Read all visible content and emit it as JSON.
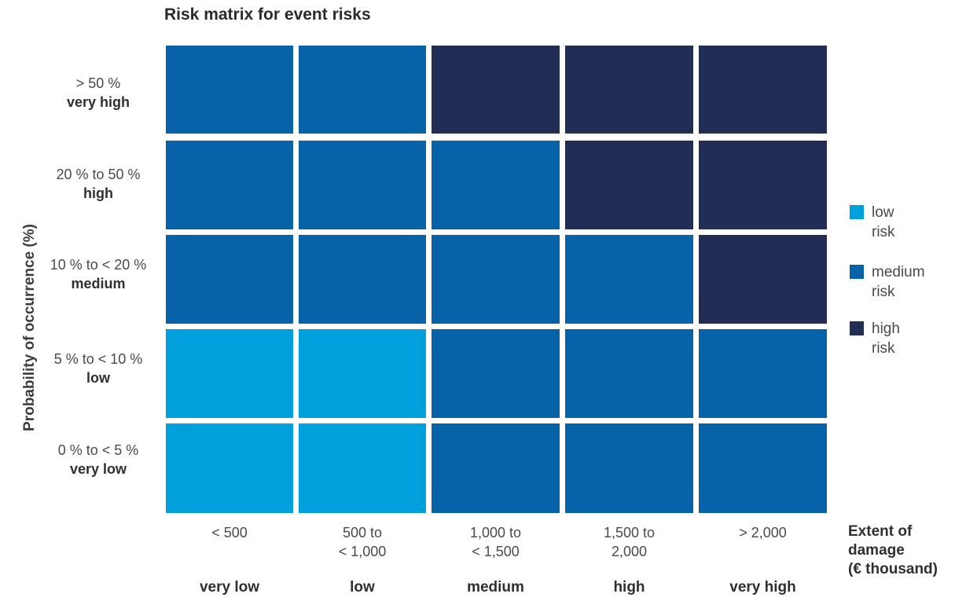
{
  "chart_data": {
    "type": "heatmap",
    "title": "Risk matrix for event risks",
    "ylabel": "Probability of occurrence (%)",
    "xlabel": [
      "Extent of",
      "damage",
      "(€ thousand)"
    ],
    "rows": [
      {
        "range": "> 50 %",
        "category": "very high"
      },
      {
        "range": "20 % to 50 %",
        "category": "high"
      },
      {
        "range": "10 % to < 20 %",
        "category": "medium"
      },
      {
        "range": "5 % to < 10 %",
        "category": "low"
      },
      {
        "range": "0 % to < 5 %",
        "category": "very low"
      }
    ],
    "columns": [
      {
        "range": [
          "< 500"
        ],
        "category": "very low"
      },
      {
        "range": [
          "500 to",
          "< 1,000"
        ],
        "category": "low"
      },
      {
        "range": [
          "1,000 to",
          "< 1,500"
        ],
        "category": "medium"
      },
      {
        "range": [
          "1,500 to",
          "2,000"
        ],
        "category": "high"
      },
      {
        "range": [
          "> 2,000"
        ],
        "category": "very high"
      }
    ],
    "cells": [
      [
        "medium",
        "medium",
        "high",
        "high",
        "high"
      ],
      [
        "medium",
        "medium",
        "medium",
        "high",
        "high"
      ],
      [
        "medium",
        "medium",
        "medium",
        "medium",
        "high"
      ],
      [
        "low",
        "low",
        "medium",
        "medium",
        "medium"
      ],
      [
        "low",
        "low",
        "medium",
        "medium",
        "medium"
      ]
    ],
    "legend": [
      {
        "key": "low",
        "label": [
          "low",
          "risk"
        ]
      },
      {
        "key": "medium",
        "label": [
          "medium",
          "risk"
        ]
      },
      {
        "key": "high",
        "label": [
          "high",
          "risk"
        ]
      }
    ],
    "colors": {
      "low": "#00a0dd",
      "medium": "#0762a8",
      "high": "#222d56"
    },
    "legend_position": "right"
  }
}
